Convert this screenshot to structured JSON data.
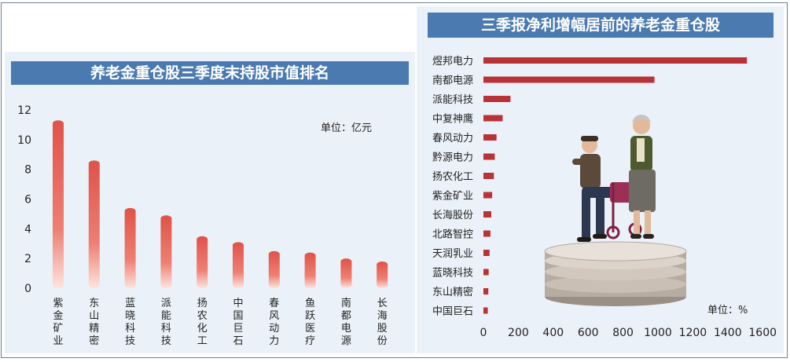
{
  "left_chart": {
    "title": "养老金重仓股三季度末持股市值排名",
    "unit": "单位：亿元",
    "yticks": [
      "0",
      "2",
      "4",
      "6",
      "8",
      "10",
      "12"
    ]
  },
  "right_chart": {
    "title": "三季报净利增幅居前的养老金重仓股",
    "unit": "单位：%",
    "xticks": [
      "0",
      "200",
      "400",
      "600",
      "800",
      "1000",
      "1200",
      "1400",
      "1600"
    ]
  },
  "colors": {
    "bar": "#e05248",
    "bar_fade": "#fde4de",
    "hbar": "#b83236",
    "title_bg": "#4a7ab0",
    "panel_bg": "#eaf1f8"
  },
  "illustration": {
    "name": "elderly-couple-on-coin-stack"
  },
  "chart_data": [
    {
      "type": "bar",
      "title": "养老金重仓股三季度末持股市值排名",
      "unit": "亿元",
      "categories": [
        "紫金矿业",
        "东山精密",
        "蓝晓科技",
        "派能科技",
        "扬农化工",
        "中国巨石",
        "春风动力",
        "鱼跃医疗",
        "南都电源",
        "长海股份"
      ],
      "values": [
        11.3,
        8.6,
        5.4,
        4.9,
        3.5,
        3.1,
        2.5,
        2.4,
        2.0,
        1.8
      ],
      "ylim": [
        0,
        12
      ],
      "grid": false
    },
    {
      "type": "bar",
      "orientation": "horizontal",
      "title": "三季报净利增幅居前的养老金重仓股",
      "unit": "%",
      "categories": [
        "煜邦电力",
        "南都电源",
        "派能科技",
        "中复神鹰",
        "春风动力",
        "黔源电力",
        "扬农化工",
        "紫金矿业",
        "长海股份",
        "北路智控",
        "天润乳业",
        "蓝晓科技",
        "东山精密",
        "中国巨石"
      ],
      "values": [
        1510,
        980,
        155,
        110,
        75,
        65,
        60,
        50,
        45,
        40,
        35,
        30,
        28,
        25
      ],
      "xlim": [
        0,
        1600
      ],
      "grid": false
    }
  ]
}
